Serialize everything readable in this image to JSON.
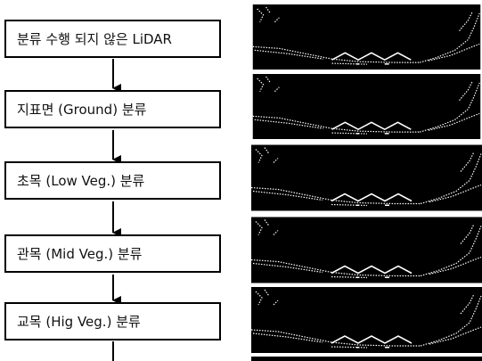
{
  "nodes": [
    {
      "label": "분류 수행 되지 않은 LiDAR"
    },
    {
      "label": "지표면 (Ground) 분류"
    },
    {
      "label": "초목 (Low Veg.) 분류"
    },
    {
      "label": "관목 (Mid Veg.) 분류"
    },
    {
      "label": "교목 (Hig Veg.) 분류"
    }
  ]
}
